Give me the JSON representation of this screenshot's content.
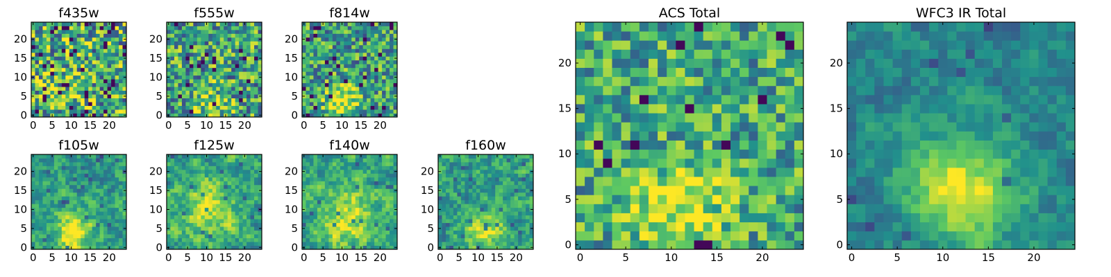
{
  "chart_data": [
    {
      "type": "heatmap",
      "title": "f435w",
      "grid_size": 25,
      "xticks": [
        "0",
        "5",
        "10",
        "15",
        "20"
      ],
      "yticks": [
        "0",
        "5",
        "10",
        "15",
        "20"
      ],
      "seed": 11,
      "blob": {
        "x": 10,
        "y": 5,
        "sigma": 4,
        "amp": 0.1
      },
      "noise": 0.42,
      "base": 0.62,
      "dark_frac": 0.07,
      "smooth": 0
    },
    {
      "type": "heatmap",
      "title": "f555w",
      "grid_size": 25,
      "xticks": [
        "0",
        "5",
        "10",
        "15",
        "20"
      ],
      "yticks": [
        "0",
        "5",
        "10",
        "15",
        "20"
      ],
      "seed": 23,
      "blob": {
        "x": 11,
        "y": 3,
        "sigma": 3,
        "amp": 0.3
      },
      "noise": 0.38,
      "base": 0.58,
      "dark_frac": 0.03,
      "smooth": 0
    },
    {
      "type": "heatmap",
      "title": "f814w",
      "grid_size": 25,
      "xticks": [
        "0",
        "5",
        "10",
        "15",
        "20"
      ],
      "yticks": [
        "0",
        "5",
        "10",
        "15",
        "20"
      ],
      "seed": 37,
      "blob": {
        "x": 10,
        "y": 4,
        "sigma": 3.2,
        "amp": 0.45
      },
      "noise": 0.34,
      "base": 0.56,
      "dark_frac": 0.04,
      "smooth": 0
    },
    {
      "type": "heatmap",
      "title": "f105w",
      "grid_size": 25,
      "xticks": [
        "0",
        "5",
        "10",
        "15",
        "20"
      ],
      "yticks": [
        "0",
        "5",
        "10",
        "15",
        "20"
      ],
      "seed": 41,
      "blob": {
        "x": 11,
        "y": 4,
        "sigma": 3.5,
        "amp": 0.5
      },
      "noise": 0.32,
      "base": 0.55,
      "dark_frac": 0.03,
      "smooth": 1
    },
    {
      "type": "heatmap",
      "title": "f125w",
      "grid_size": 25,
      "xticks": [
        "0",
        "5",
        "10",
        "15",
        "20"
      ],
      "yticks": [
        "0",
        "5",
        "10",
        "15",
        "20"
      ],
      "seed": 53,
      "blob": {
        "x": 11,
        "y": 10,
        "sigma": 4.5,
        "amp": 0.35
      },
      "noise": 0.34,
      "base": 0.6,
      "dark_frac": 0.03,
      "smooth": 1
    },
    {
      "type": "heatmap",
      "title": "f140w",
      "grid_size": 25,
      "xticks": [
        "0",
        "5",
        "10",
        "15",
        "20"
      ],
      "yticks": [
        "0",
        "5",
        "10",
        "15",
        "20"
      ],
      "seed": 67,
      "blob": {
        "x": 11,
        "y": 8,
        "sigma": 5,
        "amp": 0.35
      },
      "noise": 0.32,
      "base": 0.6,
      "dark_frac": 0.02,
      "smooth": 1
    },
    {
      "type": "heatmap",
      "title": "f160w",
      "grid_size": 25,
      "xticks": [
        "0",
        "5",
        "10",
        "15",
        "20"
      ],
      "yticks": [
        "0",
        "5",
        "10",
        "15",
        "20"
      ],
      "seed": 79,
      "blob": {
        "x": 12,
        "y": 4,
        "sigma": 4,
        "amp": 0.35
      },
      "noise": 0.34,
      "base": 0.56,
      "dark_frac": 0.04,
      "smooth": 1
    },
    {
      "type": "heatmap",
      "title": "ACS Total",
      "grid_size": 25,
      "xticks": [
        "0",
        "5",
        "10",
        "15",
        "20"
      ],
      "yticks": [
        "0",
        "5",
        "10",
        "15",
        "20"
      ],
      "seed": 97,
      "blob": {
        "x": 11,
        "y": 4,
        "sigma": 3.5,
        "amp": 0.4
      },
      "noise": 0.3,
      "base": 0.6,
      "dark_frac": 0.03,
      "smooth": 0
    },
    {
      "type": "heatmap",
      "title": "WFC3 IR Total",
      "grid_size": 25,
      "xticks": [
        "0",
        "5",
        "10",
        "15",
        "20"
      ],
      "yticks": [
        "0",
        "5",
        "10",
        "15",
        "20"
      ],
      "seed": 113,
      "blob": {
        "x": 12,
        "y": 6,
        "sigma": 4,
        "amp": 0.55
      },
      "noise": 0.22,
      "base": 0.45,
      "dark_frac": 0.02,
      "smooth": 1
    }
  ],
  "colormap": [
    "#440154",
    "#3b528b",
    "#21918c",
    "#5ec962",
    "#fde725"
  ]
}
